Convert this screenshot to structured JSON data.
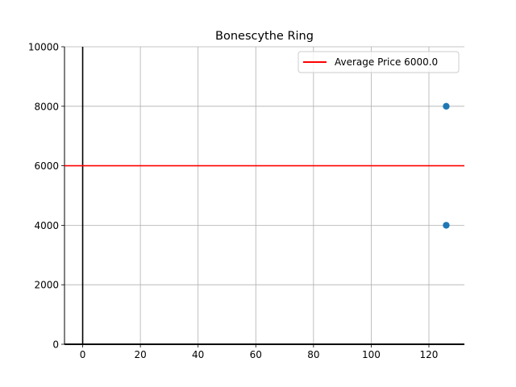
{
  "chart_data": {
    "type": "scatter",
    "title": "Bonescythe Ring",
    "xlabel": "",
    "ylabel": "",
    "xlim": [
      -6.3,
      132.3
    ],
    "ylim": [
      0,
      10000
    ],
    "x_ticks": [
      0,
      20,
      40,
      60,
      80,
      100,
      120
    ],
    "y_ticks": [
      0,
      2000,
      4000,
      6000,
      8000,
      10000
    ],
    "grid": true,
    "legend_position": "top-right",
    "points": [
      {
        "x": 126,
        "y": 8000
      },
      {
        "x": 126,
        "y": 4000
      }
    ],
    "average_line": {
      "y": 6000,
      "label": "Average Price 6000.0",
      "color": "#ff0000"
    },
    "point_color": "#1f77b4",
    "zero_axis_color": "#000000"
  }
}
